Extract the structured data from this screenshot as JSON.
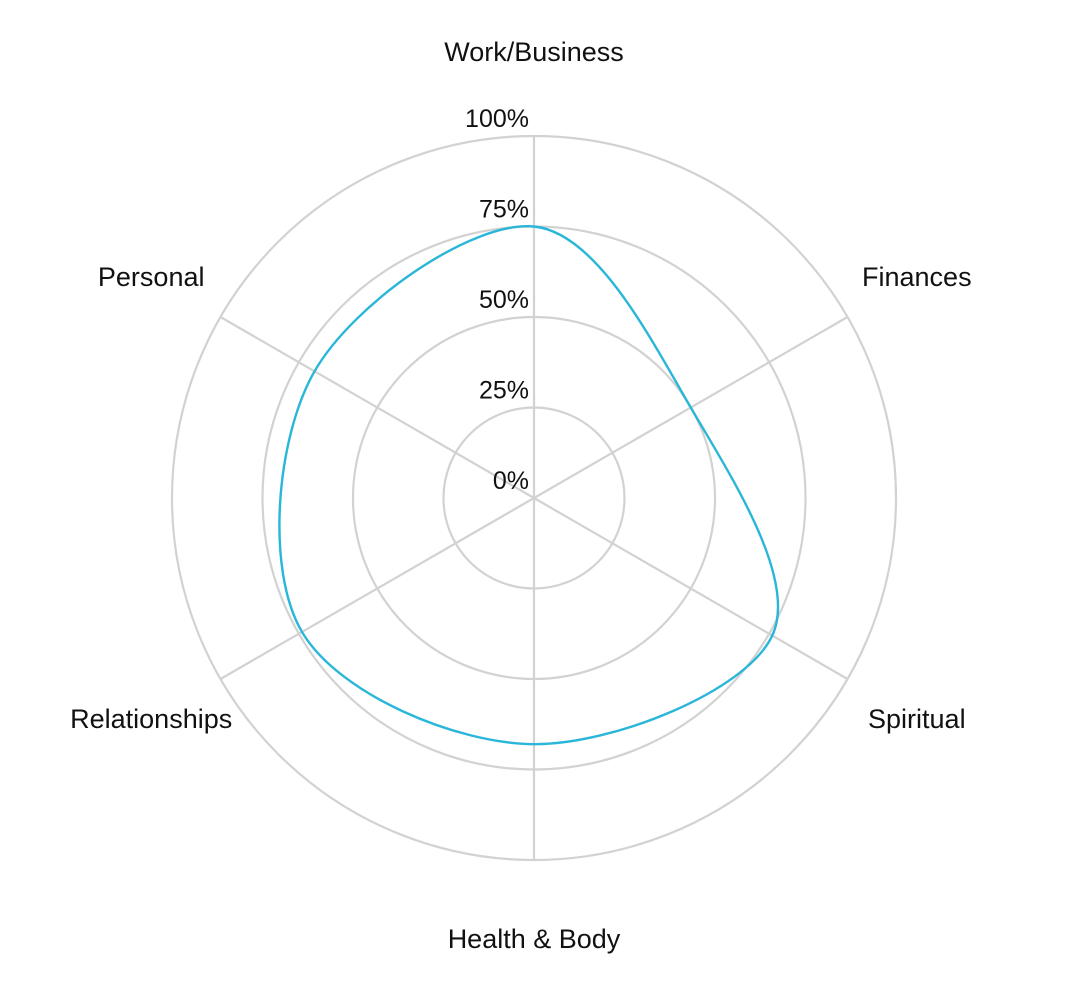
{
  "chart_data": {
    "type": "radar",
    "categories": [
      "Work/Business",
      "Finances",
      "Spiritual",
      "Health & Body",
      "Relationships",
      "Personal"
    ],
    "series": [
      {
        "values": [
          75,
          50,
          76,
          68,
          74,
          70
        ],
        "color": "#29b6d8"
      }
    ],
    "rlim": [
      0,
      100
    ],
    "ticks": [
      "0%",
      "25%",
      "50%",
      "75%",
      "100%"
    ],
    "tick_values": [
      0,
      25,
      50,
      75,
      100
    ],
    "grid": true,
    "grid_color": "#d2d2d2",
    "smooth": true,
    "legend": "none"
  }
}
